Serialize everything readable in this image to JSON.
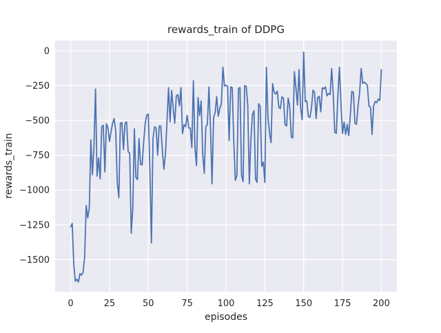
{
  "figure": {
    "title": "rewards_train of DDPG",
    "xlabel": "episodes",
    "ylabel": "rewards_train"
  },
  "colors": {
    "line": "#4c72b0",
    "plot_background": "#eaeaf2",
    "gridline": "#ffffff",
    "figure_background": "#ffffff",
    "text": "#262626"
  },
  "chart_data": {
    "type": "line",
    "title": "rewards_train of DDPG",
    "xlabel": "episodes",
    "ylabel": "rewards_train",
    "legend": false,
    "grid": true,
    "x_ticks": [
      0,
      25,
      50,
      75,
      100,
      125,
      150,
      175,
      200
    ],
    "y_ticks": [
      0,
      -250,
      -500,
      -750,
      -1000,
      -1250,
      -1500
    ],
    "xlim": [
      -10,
      210
    ],
    "ylim": [
      -1730,
      73
    ],
    "series": [
      {
        "name": "rewards_train",
        "x_start": 0,
        "x_step": 1,
        "y": [
          -1265,
          -1240,
          -1530,
          -1655,
          -1640,
          -1660,
          -1600,
          -1610,
          -1590,
          -1480,
          -1110,
          -1200,
          -1130,
          -640,
          -890,
          -690,
          -275,
          -900,
          -770,
          -920,
          -545,
          -535,
          -870,
          -525,
          -550,
          -650,
          -580,
          -520,
          -487,
          -575,
          -945,
          -1055,
          -520,
          -515,
          -710,
          -520,
          -510,
          -725,
          -735,
          -1310,
          -1130,
          -560,
          -910,
          -925,
          -630,
          -815,
          -820,
          -655,
          -520,
          -460,
          -455,
          -855,
          -1380,
          -630,
          -545,
          -555,
          -750,
          -540,
          -540,
          -710,
          -850,
          -745,
          -510,
          -265,
          -510,
          -285,
          -415,
          -520,
          -325,
          -315,
          -395,
          -265,
          -595,
          -530,
          -545,
          -465,
          -555,
          -555,
          -695,
          -215,
          -695,
          -825,
          -335,
          -465,
          -360,
          -745,
          -880,
          -545,
          -530,
          -260,
          -545,
          -955,
          -480,
          -445,
          -330,
          -470,
          -415,
          -380,
          -118,
          -252,
          -248,
          -255,
          -645,
          -260,
          -265,
          -650,
          -930,
          -895,
          -270,
          -265,
          -895,
          -940,
          -250,
          -255,
          -390,
          -955,
          -640,
          -460,
          -430,
          -920,
          -945,
          -380,
          -400,
          -830,
          -800,
          -945,
          -120,
          -480,
          -590,
          -660,
          -235,
          -300,
          -310,
          -290,
          -405,
          -415,
          -330,
          -340,
          -530,
          -540,
          -340,
          -400,
          -620,
          -625,
          -150,
          -265,
          -390,
          -135,
          -405,
          -495,
          -10,
          -364,
          -360,
          -471,
          -479,
          -413,
          -283,
          -299,
          -487,
          -335,
          -328,
          -438,
          -266,
          -274,
          -258,
          -324,
          -307,
          -315,
          -127,
          -307,
          -585,
          -593,
          -324,
          -119,
          -381,
          -593,
          -511,
          -601,
          -528,
          -609,
          -462,
          -291,
          -299,
          -520,
          -528,
          -397,
          -300,
          -127,
          -234,
          -226,
          -234,
          -250,
          -397,
          -405,
          -601,
          -397,
          -364,
          -373,
          -348,
          -356,
          -136
        ]
      }
    ]
  }
}
